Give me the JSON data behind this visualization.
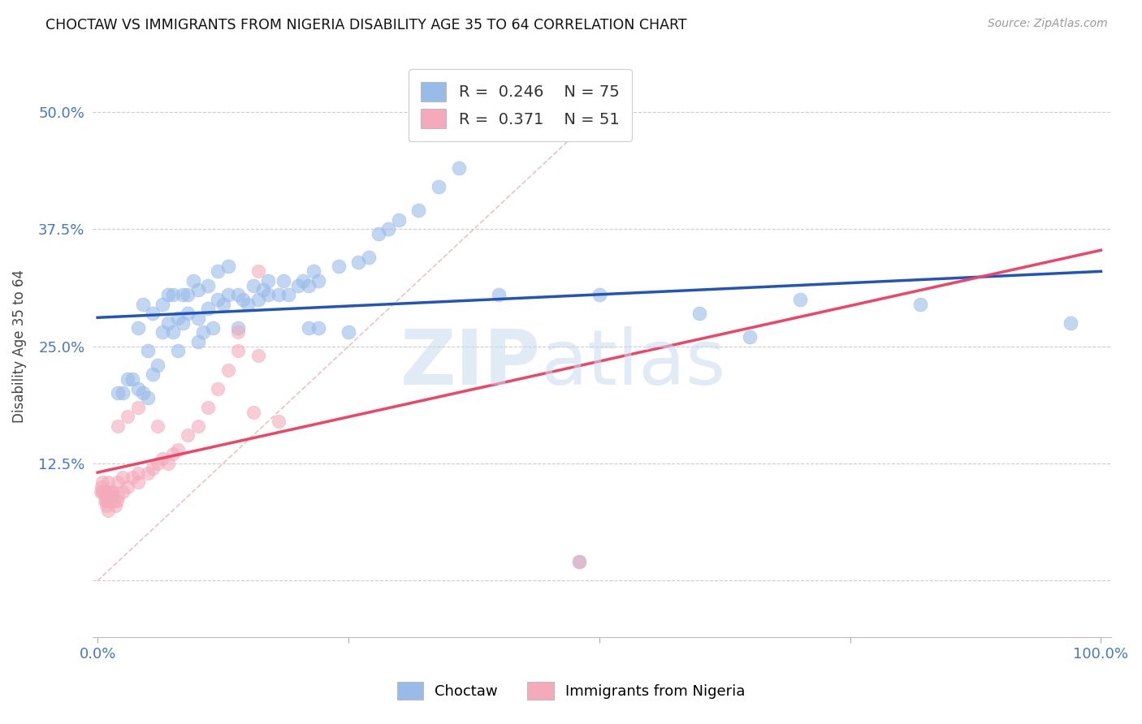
{
  "title": "CHOCTAW VS IMMIGRANTS FROM NIGERIA DISABILITY AGE 35 TO 64 CORRELATION CHART",
  "source": "Source: ZipAtlas.com",
  "ylabel": "Disability Age 35 to 64",
  "legend_label1": "Choctaw",
  "legend_label2": "Immigrants from Nigeria",
  "R1": 0.246,
  "N1": 75,
  "R2": 0.371,
  "N2": 51,
  "xlim": [
    -0.005,
    1.01
  ],
  "ylim": [
    -0.06,
    0.56
  ],
  "yticks": [
    0.0,
    0.125,
    0.25,
    0.375,
    0.5
  ],
  "ytick_labels": [
    "",
    "12.5%",
    "25.0%",
    "37.5%",
    "50.0%"
  ],
  "xticks": [
    0.0,
    0.25,
    0.5,
    0.75,
    1.0
  ],
  "xtick_labels": [
    "0.0%",
    "",
    "",
    "",
    "100.0%"
  ],
  "color_blue": "#99BBE8",
  "color_pink": "#F4AABB",
  "color_line_blue": "#2255BB",
  "color_line_pink": "#EE4466",
  "color_axis_label": "#4477CC",
  "watermark_color": "#C8DBF0",
  "choctaw_x": [
    0.02,
    0.025,
    0.03,
    0.035,
    0.04,
    0.04,
    0.045,
    0.045,
    0.05,
    0.05,
    0.055,
    0.055,
    0.06,
    0.065,
    0.065,
    0.07,
    0.07,
    0.075,
    0.075,
    0.08,
    0.08,
    0.085,
    0.085,
    0.09,
    0.09,
    0.095,
    0.1,
    0.1,
    0.1,
    0.105,
    0.11,
    0.11,
    0.115,
    0.12,
    0.12,
    0.125,
    0.13,
    0.13,
    0.14,
    0.14,
    0.145,
    0.15,
    0.155,
    0.16,
    0.165,
    0.17,
    0.17,
    0.18,
    0.185,
    0.19,
    0.2,
    0.205,
    0.21,
    0.215,
    0.22,
    0.24,
    0.26,
    0.28,
    0.29,
    0.3,
    0.32,
    0.34,
    0.36,
    0.4,
    0.27,
    0.21,
    0.22,
    0.25,
    0.5,
    0.6,
    0.65,
    0.7,
    0.82,
    0.97,
    0.48
  ],
  "choctaw_y": [
    0.2,
    0.2,
    0.215,
    0.215,
    0.205,
    0.27,
    0.2,
    0.295,
    0.195,
    0.245,
    0.22,
    0.285,
    0.23,
    0.265,
    0.295,
    0.275,
    0.305,
    0.265,
    0.305,
    0.245,
    0.28,
    0.275,
    0.305,
    0.285,
    0.305,
    0.32,
    0.255,
    0.28,
    0.31,
    0.265,
    0.29,
    0.315,
    0.27,
    0.3,
    0.33,
    0.295,
    0.305,
    0.335,
    0.27,
    0.305,
    0.3,
    0.295,
    0.315,
    0.3,
    0.31,
    0.305,
    0.32,
    0.305,
    0.32,
    0.305,
    0.315,
    0.32,
    0.315,
    0.33,
    0.32,
    0.335,
    0.34,
    0.37,
    0.375,
    0.385,
    0.395,
    0.42,
    0.44,
    0.305,
    0.345,
    0.27,
    0.27,
    0.265,
    0.305,
    0.285,
    0.26,
    0.3,
    0.295,
    0.275,
    0.02
  ],
  "nigeria_x": [
    0.003,
    0.004,
    0.005,
    0.005,
    0.006,
    0.007,
    0.008,
    0.009,
    0.009,
    0.01,
    0.01,
    0.01,
    0.01,
    0.012,
    0.013,
    0.014,
    0.015,
    0.016,
    0.018,
    0.019,
    0.02,
    0.02,
    0.025,
    0.025,
    0.03,
    0.035,
    0.04,
    0.04,
    0.05,
    0.055,
    0.06,
    0.065,
    0.07,
    0.075,
    0.08,
    0.09,
    0.1,
    0.11,
    0.12,
    0.13,
    0.14,
    0.14,
    0.155,
    0.16,
    0.18,
    0.02,
    0.03,
    0.04,
    0.06,
    0.16,
    0.48
  ],
  "nigeria_y": [
    0.095,
    0.1,
    0.095,
    0.105,
    0.095,
    0.085,
    0.09,
    0.085,
    0.08,
    0.075,
    0.085,
    0.095,
    0.105,
    0.085,
    0.09,
    0.095,
    0.095,
    0.085,
    0.08,
    0.085,
    0.09,
    0.105,
    0.095,
    0.11,
    0.1,
    0.11,
    0.115,
    0.105,
    0.115,
    0.12,
    0.125,
    0.13,
    0.125,
    0.135,
    0.14,
    0.155,
    0.165,
    0.185,
    0.205,
    0.225,
    0.245,
    0.265,
    0.18,
    0.24,
    0.17,
    0.165,
    0.175,
    0.185,
    0.165,
    0.33,
    0.02
  ]
}
